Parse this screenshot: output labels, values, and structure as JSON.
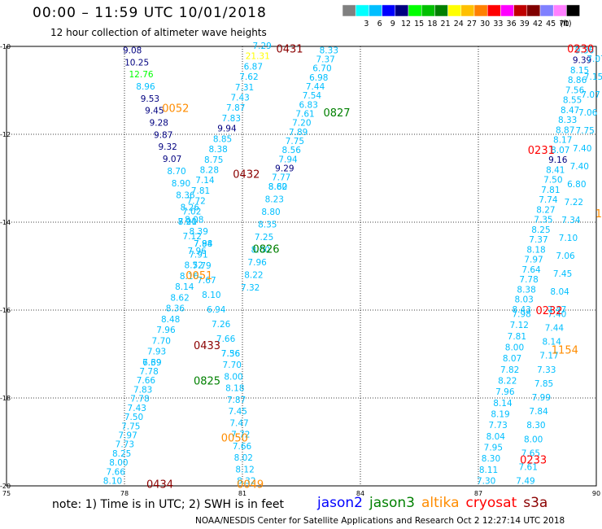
{
  "title": "00:00 – 11:59 UTC 10/01/2018",
  "subtitle": "12 hour collection of altimeter wave heights",
  "legend": {
    "units": "(ft)",
    "bins": [
      {
        "label": "",
        "color": "#808080"
      },
      {
        "label": "3",
        "color": "#00ffff"
      },
      {
        "label": "6",
        "color": "#00bfff"
      },
      {
        "label": "9",
        "color": "#0000ff"
      },
      {
        "label": "12",
        "color": "#000080"
      },
      {
        "label": "15",
        "color": "#00ff00"
      },
      {
        "label": "18",
        "color": "#00c000"
      },
      {
        "label": "21",
        "color": "#008000"
      },
      {
        "label": "24",
        "color": "#ffff00"
      },
      {
        "label": "27",
        "color": "#ffc000"
      },
      {
        "label": "30",
        "color": "#ff8000"
      },
      {
        "label": "33",
        "color": "#ff0000"
      },
      {
        "label": "36",
        "color": "#ff00ff"
      },
      {
        "label": "39",
        "color": "#c00000"
      },
      {
        "label": "42",
        "color": "#800000"
      },
      {
        "label": "45",
        "color": "#8080ff"
      },
      {
        "label": "70",
        "color": "#ff80ff"
      },
      {
        "label": "",
        "color": "#000000"
      }
    ]
  },
  "note": "note: 1) Time is in UTC; 2) SWH is in feet",
  "satellites": [
    {
      "name": "jason2",
      "color": "#0000ff"
    },
    {
      "name": "jason3",
      "color": "#008000"
    },
    {
      "name": "altika",
      "color": "#ff8c00"
    },
    {
      "name": "cryosat",
      "color": "#ff0000"
    },
    {
      "name": "s3a",
      "color": "#8b0000"
    }
  ],
  "footer": "NOAA/NESDIS Center for Satellite Applications and Research   Oct  2 12:27:14 UTC 2018",
  "chart_data": {
    "type": "scatter",
    "xlim": [
      75,
      90
    ],
    "ylim": [
      -20,
      -10
    ],
    "x_ticks": [
      {
        "value": 75,
        "label": "75"
      },
      {
        "value": 78,
        "label": "78"
      },
      {
        "value": 81,
        "label": "81"
      },
      {
        "value": 84,
        "label": "84"
      },
      {
        "value": 87,
        "label": "87"
      },
      {
        "value": 90,
        "label": "90"
      }
    ],
    "y_ticks": [
      {
        "value": -10,
        "label": "-10"
      },
      {
        "value": -12,
        "label": "-12"
      },
      {
        "value": -14,
        "label": "-14"
      },
      {
        "value": -16,
        "label": "-16"
      },
      {
        "value": -18,
        "label": "-18"
      },
      {
        "value": -20,
        "label": "-20"
      }
    ],
    "grid": true,
    "tracks": [
      {
        "satellite": "jason2",
        "start": [
          78.2,
          -10.1
        ],
        "end": [
          80.0,
          -14.5
        ],
        "values": [
          "9.08",
          "10.25",
          "12.76",
          "8.96",
          "9.53",
          "9.45",
          "9.28",
          "9.87",
          "9.32",
          "9.07",
          "8.70",
          "8.90",
          "8.36",
          "8.26",
          "8.08",
          "8.39",
          "7.84"
        ],
        "colors": [
          "#000080",
          "#000080",
          "#00ff00",
          "#00bfff",
          "#000080",
          "#000080",
          "#000080",
          "#000080",
          "#000080",
          "#000080",
          "#00bfff",
          "#00bfff",
          "#00bfff",
          "#00bfff",
          "#00bfff",
          "#00bfff",
          "#00bfff"
        ]
      },
      {
        "satellite": "jason2",
        "start": [
          80.0,
          -14.5
        ],
        "end": [
          78.7,
          -17.2
        ],
        "values": [
          "7.98",
          "7.91",
          "8.52",
          "8.16",
          "8.14",
          "8.62",
          "8.36",
          "8.48",
          "7.96",
          "7.70",
          "7.93",
          "6.69"
        ],
        "colors": [
          "#00bfff"
        ]
      },
      {
        "satellite": "jason2",
        "start": [
          78.7,
          -17.2
        ],
        "end": [
          77.7,
          -19.9
        ],
        "values": [
          "7.39",
          "7.78",
          "7.66",
          "7.83",
          "7.78",
          "7.43",
          "7.50",
          "7.75",
          "7.97",
          "7.73",
          "8.25",
          "8.00",
          "7.66",
          "8.10"
        ],
        "colors": [
          "#00bfff"
        ]
      },
      {
        "satellite": "altika",
        "start": [
          81.5,
          -10.0
        ],
        "end": [
          79.6,
          -14.0
        ],
        "values": [
          "7.29",
          "21.31",
          "6.87",
          "7.62",
          "7.31",
          "7.43",
          "7.87",
          "7.83",
          "9.94",
          "8.85",
          "8.38",
          "8.75",
          "8.28",
          "7.14",
          "7.81",
          "7.72",
          "7.02",
          "8.21"
        ],
        "colors": [
          "#00bfff",
          "#ffff00",
          "#00bfff",
          "#00bfff",
          "#00bfff",
          "#00bfff",
          "#00bfff",
          "#00bfff",
          "#000080",
          "#00bfff",
          "#00bfff",
          "#00bfff",
          "#00bfff",
          "#00bfff",
          "#00bfff",
          "#00bfff",
          "#00bfff",
          "#00bfff"
        ]
      },
      {
        "satellite": "altika",
        "start": [
          79.6,
          -14.0
        ],
        "end": [
          80.7,
          -17.0
        ],
        "values": [
          "7.90",
          "7.12",
          "7.96",
          "7.79",
          "7.67",
          "8.10",
          "6.94",
          "7.26",
          "7.66",
          "7.56"
        ],
        "colors": [
          "#00bfff"
        ]
      },
      {
        "satellite": "altika",
        "start": [
          80.7,
          -17.0
        ],
        "end": [
          81.1,
          -19.9
        ],
        "values": [
          "7.36",
          "7.70",
          "8.00",
          "8.18",
          "7.87",
          "7.45",
          "7.47",
          "7.72",
          "7.66",
          "8.02",
          "8.12",
          "8.32"
        ],
        "colors": [
          "#00bfff"
        ]
      },
      {
        "satellite": "jason3",
        "start": [
          83.2,
          -10.1
        ],
        "end": [
          81.9,
          -13.2
        ],
        "values": [
          "8.33",
          "7.37",
          "6.70",
          "6.98",
          "7.44",
          "7.54",
          "6.83",
          "7.61",
          "7.20",
          "7.89",
          "7.75",
          "8.56",
          "7.94",
          "9.29",
          "7.77",
          "8.60"
        ],
        "colors": [
          "#00bfff",
          "#00bfff",
          "#00bfff",
          "#00bfff",
          "#00bfff",
          "#00bfff",
          "#00bfff",
          "#00bfff",
          "#00bfff",
          "#00bfff",
          "#00bfff",
          "#00bfff",
          "#00bfff",
          "#000080",
          "#00bfff",
          "#00bfff"
        ]
      },
      {
        "satellite": "jason3",
        "start": [
          81.9,
          -13.2
        ],
        "end": [
          81.2,
          -15.5
        ],
        "values": [
          "8.82",
          "8.23",
          "8.80",
          "8.35",
          "7.25",
          "8.00",
          "7.96",
          "8.22",
          "7.32"
        ],
        "colors": [
          "#00bfff"
        ]
      },
      {
        "satellite": "cryosat",
        "start": [
          89.7,
          -10.1
        ],
        "end": [
          88.1,
          -16.0
        ],
        "values": [
          "9.36",
          "9.39",
          "8.15",
          "8.86",
          "7.56",
          "8.55",
          "8.47",
          "8.33",
          "8.87",
          "8.17",
          "8.07",
          "9.16",
          "8.41",
          "7.50",
          "7.81",
          "7.74",
          "8.27",
          "7.35",
          "8.25",
          "7.37",
          "8.18",
          "7.97",
          "7.64",
          "7.78",
          "8.38",
          "8.03",
          "8.43"
        ],
        "colors": [
          "#00bfff",
          "#000080",
          "#00bfff",
          "#00bfff",
          "#00bfff",
          "#00bfff",
          "#00bfff",
          "#00bfff",
          "#00bfff",
          "#00bfff",
          "#00bfff",
          "#000080",
          "#00bfff",
          "#00bfff",
          "#00bfff",
          "#00bfff",
          "#00bfff",
          "#00bfff",
          "#00bfff",
          "#00bfff",
          "#00bfff",
          "#00bfff",
          "#00bfff",
          "#00bfff",
          "#00bfff",
          "#00bfff",
          "#00bfff"
        ]
      },
      {
        "satellite": "cryosat",
        "start": [
          90.0,
          -10.3
        ],
        "end": [
          89.0,
          -16.0
        ],
        "values": [
          "7.07",
          "7.15",
          "7.07",
          "7.06",
          "7.75",
          "7.40",
          "7.40",
          "6.80",
          "7.22",
          "7.34",
          "7.10",
          "7.06",
          "7.45",
          "8.04",
          "7.47"
        ],
        "colors": [
          "#00bfff"
        ]
      },
      {
        "satellite": "cryosat",
        "start": [
          88.1,
          -16.1
        ],
        "end": [
          87.2,
          -19.9
        ],
        "values": [
          "7.98",
          "7.12",
          "7.81",
          "8.00",
          "8.07",
          "7.82",
          "8.22",
          "7.96",
          "8.14",
          "8.19",
          "7.73",
          "8.04",
          "7.95",
          "8.30",
          "8.11",
          "7.30"
        ],
        "colors": [
          "#00bfff"
        ]
      },
      {
        "satellite": "cryosat",
        "start": [
          89.0,
          -16.1
        ],
        "end": [
          88.2,
          -19.9
        ],
        "values": [
          "7.40",
          "7.44",
          "8.14",
          "7.17",
          "7.33",
          "7.85",
          "7.99",
          "7.84",
          "8.30",
          "8.00",
          "7.65",
          "7.61",
          "7.49"
        ],
        "colors": [
          "#00bfff"
        ]
      }
    ],
    "pass_labels": [
      {
        "text": "0431",
        "x": 82.2,
        "y": -10.05,
        "color": "#8b0000"
      },
      {
        "text": "0052",
        "x": 79.3,
        "y": -11.4,
        "color": "#ff8c00"
      },
      {
        "text": "0827",
        "x": 83.4,
        "y": -11.5,
        "color": "#008000"
      },
      {
        "text": "0432",
        "x": 81.1,
        "y": -12.9,
        "color": "#8b0000"
      },
      {
        "text": "0826",
        "x": 81.6,
        "y": -14.6,
        "color": "#008000"
      },
      {
        "text": "0051",
        "x": 79.9,
        "y": -15.2,
        "color": "#ff8c00"
      },
      {
        "text": "0433",
        "x": 80.1,
        "y": -16.8,
        "color": "#8b0000"
      },
      {
        "text": "0825",
        "x": 80.1,
        "y": -17.6,
        "color": "#008000"
      },
      {
        "text": "0050",
        "x": 80.8,
        "y": -18.9,
        "color": "#ff8c00"
      },
      {
        "text": "0049",
        "x": 81.2,
        "y": -19.95,
        "color": "#ff8c00"
      },
      {
        "text": "0434",
        "x": 78.9,
        "y": -19.95,
        "color": "#8b0000"
      },
      {
        "text": "0230",
        "x": 89.6,
        "y": -10.05,
        "color": "#ff0000"
      },
      {
        "text": "0231",
        "x": 88.6,
        "y": -12.35,
        "color": "#ff0000"
      },
      {
        "text": "1",
        "x": 90.0,
        "y": -13.8,
        "color": "#ff8c00"
      },
      {
        "text": "0232",
        "x": 88.8,
        "y": -16.0,
        "color": "#ff0000"
      },
      {
        "text": "1154",
        "x": 89.2,
        "y": -16.9,
        "color": "#ff8c00"
      },
      {
        "text": "0233",
        "x": 88.4,
        "y": -19.4,
        "color": "#ff0000"
      }
    ]
  }
}
